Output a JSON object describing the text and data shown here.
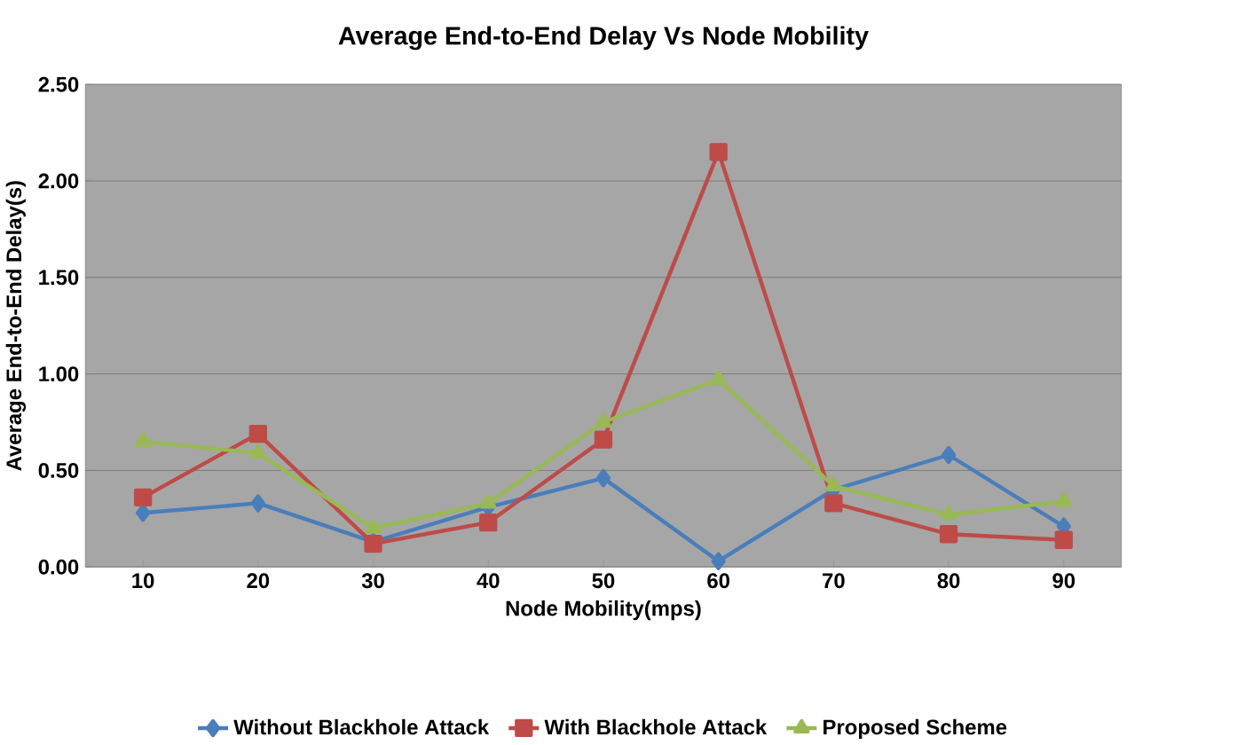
{
  "chart_data": {
    "type": "line",
    "title": "Average End-to-End Delay Vs Node Mobility",
    "xlabel": "Node Mobility(mps)",
    "ylabel": "Average End-to-End Delay(s)",
    "categories": [
      "10",
      "20",
      "30",
      "40",
      "50",
      "60",
      "70",
      "80",
      "90"
    ],
    "series": [
      {
        "name": "Without Blackhole Attack",
        "color": "#4a7ebb",
        "marker": "diamond",
        "values": [
          0.28,
          0.33,
          0.13,
          0.31,
          0.46,
          0.03,
          0.4,
          0.58,
          0.21
        ]
      },
      {
        "name": "With Blackhole Attack",
        "color": "#be4b48",
        "marker": "square",
        "values": [
          0.36,
          0.69,
          0.12,
          0.23,
          0.66,
          2.15,
          0.33,
          0.17,
          0.14
        ]
      },
      {
        "name": "Proposed Scheme",
        "color": "#98b954",
        "marker": "triangle",
        "values": [
          0.65,
          0.59,
          0.2,
          0.33,
          0.75,
          0.97,
          0.42,
          0.27,
          0.34
        ]
      }
    ],
    "ylim": [
      0,
      2.5
    ],
    "yticks": [
      {
        "value": 0,
        "label": "0.00"
      },
      {
        "value": 0.5,
        "label": "0.50"
      },
      {
        "value": 1,
        "label": "1.00"
      },
      {
        "value": 1.5,
        "label": "1.50"
      },
      {
        "value": 2,
        "label": "2.00"
      },
      {
        "value": 2.5,
        "label": "2.50"
      }
    ],
    "grid": "y",
    "legend": "bottom",
    "line_style": "solid"
  }
}
